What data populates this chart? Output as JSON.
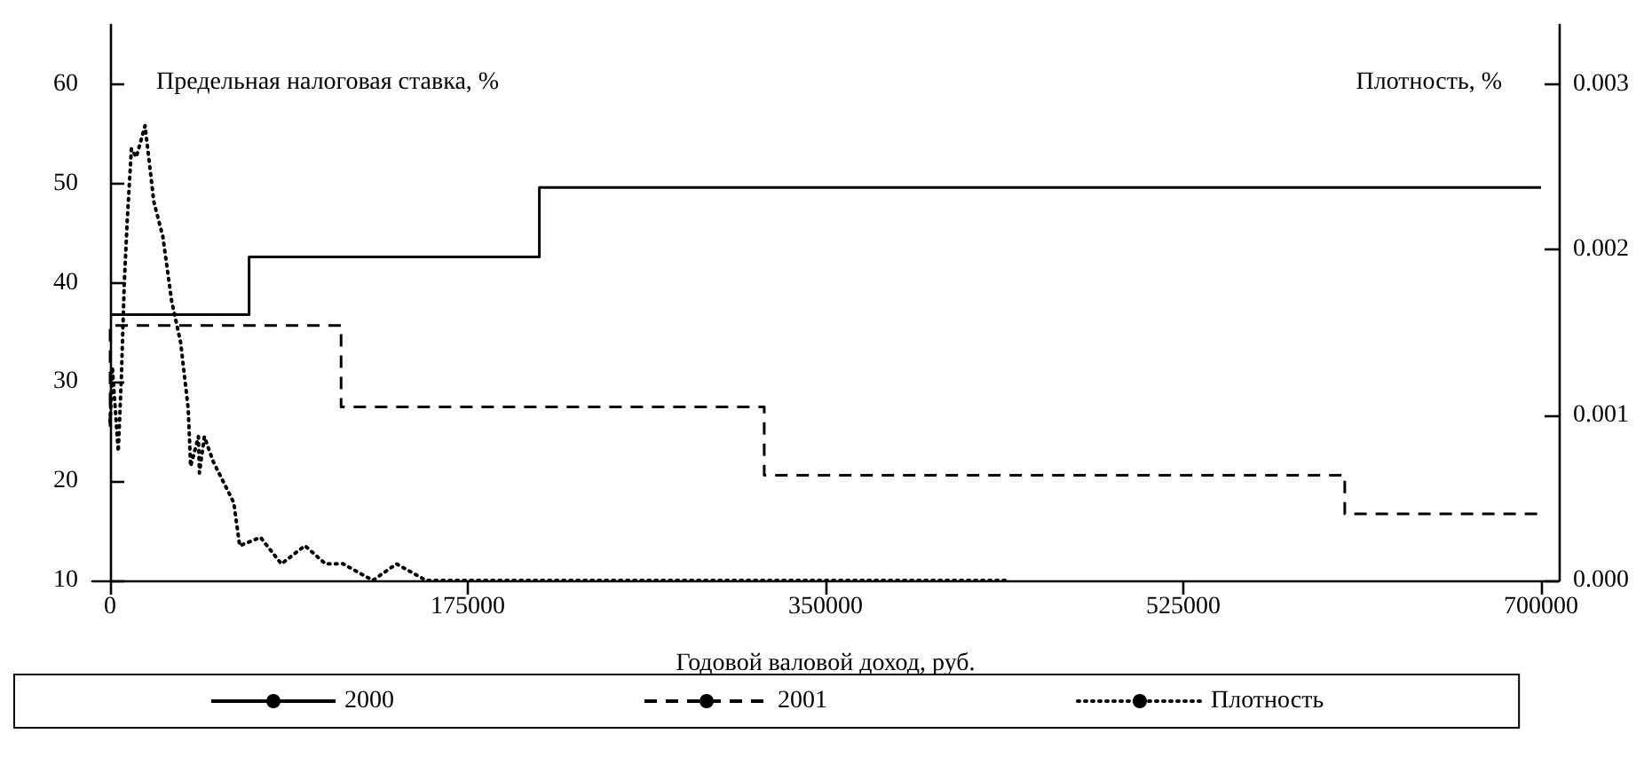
{
  "chart_data": {
    "type": "step",
    "xlabel": "Годовой валовой доход, руб.",
    "ylabel": "Предельная налоговая ставка, %",
    "y2label": "Плотность, %",
    "xlim": [
      -8700,
      708700
    ],
    "xticks": [
      0,
      175000,
      350000,
      525000,
      700000
    ],
    "ylim": [
      10,
      66
    ],
    "yticks": [
      10,
      20,
      30,
      40,
      50,
      60
    ],
    "y2lim": [
      0,
      0.00336
    ],
    "y2ticks": [
      {
        "value": 0,
        "label": "0.000"
      },
      {
        "value": 0.001,
        "label": "0.001"
      },
      {
        "value": 0.002,
        "label": "0.002"
      },
      {
        "value": 0.003,
        "label": "0.003"
      }
    ],
    "grid": false,
    "legend": "bottom",
    "marker": "none",
    "series": [
      {
        "name": "2000",
        "color": "#000000",
        "line_style": "solid",
        "x": [
          0,
          68000,
          210000,
          700000
        ],
        "values": [
          36.8,
          42.6,
          49.6,
          49.6
        ]
      },
      {
        "name": "2001",
        "color": "#000000",
        "line_style": "dashed",
        "x": [
          0,
          0,
          113000,
          320000,
          604000,
          700000
        ],
        "values": [
          25.5,
          35.7,
          27.5,
          20.6,
          16.7,
          16.7
        ]
      },
      {
        "name": "Плотность",
        "type": "line",
        "axis": "y2",
        "color": "#000000",
        "line_style": "dotted",
        "x": [
          0,
          1100,
          4000,
          5500,
          6900,
          8400,
          10400,
          12800,
          17100,
          21400,
          25800,
          30100,
          34500,
          38200,
          39400,
          43200,
          43700,
          46100,
          50400,
          60500,
          63400,
          73600,
          83800,
          95300,
          105400,
          114000,
          128500,
          140100,
          154600,
          174800,
          183500,
          200900,
          229500,
          300000,
          380000,
          440000
        ],
        "values": [
          0.00096,
          0.00129,
          0.00078,
          0.00122,
          0.00179,
          0.00218,
          0.00261,
          0.00256,
          0.00275,
          0.00229,
          0.00208,
          0.00169,
          0.00144,
          0.00104,
          0.00069,
          0.00087,
          0.00065,
          0.00087,
          0.00072,
          0.00047,
          0.00021,
          0.00026,
          0.0001,
          0.00021,
          0.0001,
          0.0001,
          0,
          0.0001,
          0,
          0,
          0,
          0,
          0,
          0,
          0,
          0
        ]
      }
    ]
  }
}
